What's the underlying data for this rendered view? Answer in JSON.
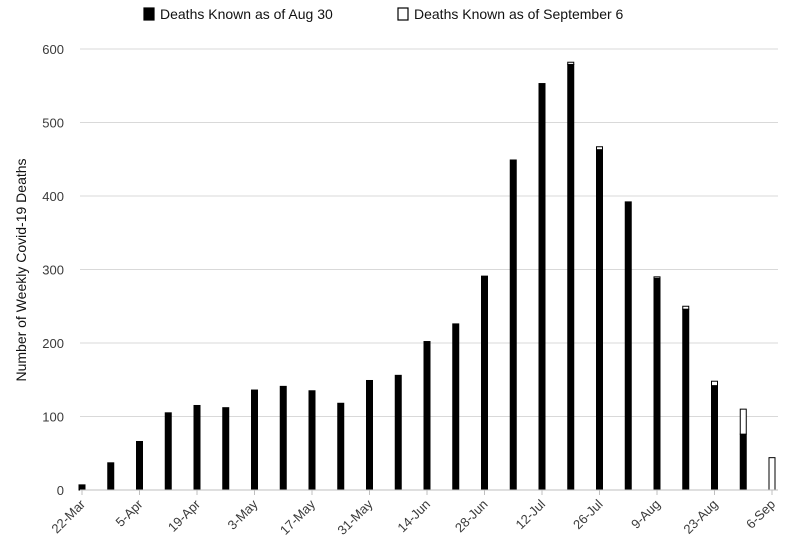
{
  "chart_data": {
    "type": "bar",
    "title": "",
    "xlabel": "",
    "ylabel": "Number of Weekly Covid-19 Deaths",
    "ylim": [
      0,
      600
    ],
    "yticks": [
      0,
      100,
      200,
      300,
      400,
      500,
      600
    ],
    "grid": true,
    "legend_position": "top-center",
    "stacked": true,
    "x_tick_labels": [
      "22-Mar",
      "5-Apr",
      "19-Apr",
      "3-May",
      "17-May",
      "31-May",
      "14-Jun",
      "28-Jun",
      "12-Jul",
      "26-Jul",
      "9-Aug",
      "23-Aug",
      "6-Sep"
    ],
    "categories": [
      "22-Mar",
      "29-Mar",
      "5-Apr",
      "12-Apr",
      "19-Apr",
      "26-Apr",
      "3-May",
      "10-May",
      "17-May",
      "24-May",
      "31-May",
      "7-Jun",
      "14-Jun",
      "21-Jun",
      "28-Jun",
      "5-Jul",
      "12-Jul",
      "19-Jul",
      "26-Jul",
      "2-Aug",
      "9-Aug",
      "16-Aug",
      "23-Aug",
      "30-Aug",
      "6-Sep"
    ],
    "series": [
      {
        "name": "Deaths Known as of Aug 30",
        "color": "#000000",
        "values": [
          7,
          37,
          66,
          105,
          115,
          112,
          136,
          141,
          135,
          118,
          149,
          156,
          202,
          226,
          291,
          449,
          553,
          579,
          463,
          392,
          288,
          246,
          142,
          76,
          0
        ]
      },
      {
        "name": "Deaths Known as of September 6",
        "color": "#ffffff",
        "values": [
          0,
          0,
          0,
          0,
          0,
          0,
          0,
          0,
          0,
          0,
          0,
          0,
          0,
          0,
          0,
          0,
          0,
          3,
          4,
          0,
          2,
          4,
          6,
          34,
          44
        ]
      }
    ]
  }
}
